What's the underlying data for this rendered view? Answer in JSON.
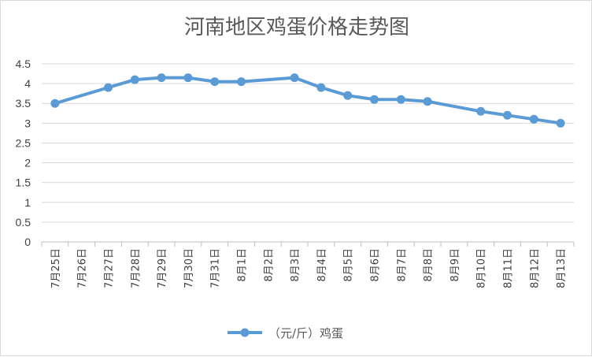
{
  "chart_data": {
    "type": "line",
    "title": "河南地区鸡蛋价格走势图",
    "xlabel": "",
    "ylabel": "",
    "categories": [
      "7月25日",
      "7月26日",
      "7月27日",
      "7月28日",
      "7月29日",
      "7月30日",
      "7月31日",
      "8月1日",
      "8月2日",
      "8月3日",
      "8月4日",
      "8月5日",
      "8月6日",
      "8月7日",
      "8月8日",
      "8月9日",
      "8月10日",
      "8月11日",
      "8月12日",
      "8月13日"
    ],
    "series": [
      {
        "name": "（元/斤）鸡蛋",
        "values": [
          3.5,
          null,
          3.9,
          4.1,
          4.15,
          4.15,
          4.05,
          4.05,
          null,
          4.15,
          3.9,
          3.7,
          3.6,
          3.6,
          3.55,
          null,
          3.3,
          3.2,
          3.1,
          3.0
        ]
      }
    ],
    "ylim": [
      0,
      4.5
    ],
    "yticks": [
      "0",
      "0.5",
      "1",
      "1.5",
      "2",
      "2.5",
      "3",
      "3.5",
      "4",
      "4.5"
    ],
    "grid": true,
    "legend_position": "bottom",
    "colors": {
      "series": "#5b9bd5",
      "grid": "#d9d9d9",
      "axis": "#bfbfbf"
    }
  }
}
